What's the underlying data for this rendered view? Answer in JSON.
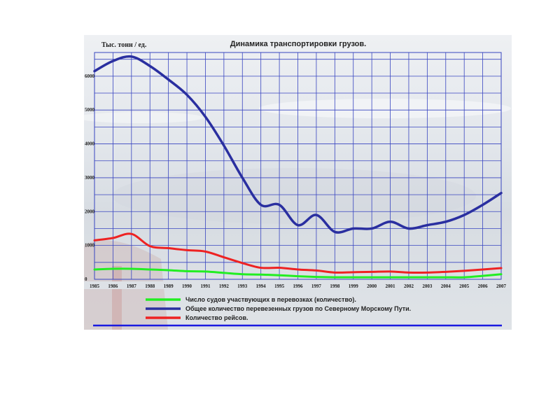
{
  "chart_data": {
    "type": "line",
    "title": "Динамика транспортировки грузов.",
    "ylabel": "Тыс. тонн / ед.",
    "xlabel": "",
    "categories": [
      "1985",
      "1986",
      "1987",
      "1988",
      "1989",
      "1990",
      "1991",
      "1992",
      "1993",
      "1994",
      "1995",
      "1996",
      "1997",
      "1998",
      "1999",
      "2000",
      "2001",
      "2002",
      "2003",
      "2004",
      "2005",
      "2006",
      "2007"
    ],
    "yticks": [
      "0",
      "1000",
      "2000",
      "3000",
      "4000",
      "5000",
      "6000"
    ],
    "ylim": [
      0,
      6700
    ],
    "grid": true,
    "legend_position": "bottom",
    "series": [
      {
        "name": "Общее количество перевезенных грузов по  Северному Морскому Пути.",
        "color": "#2a2fa0",
        "values": [
          6150,
          6450,
          6580,
          6300,
          5900,
          5450,
          4800,
          3950,
          3000,
          2200,
          2200,
          1600,
          1900,
          1400,
          1500,
          1500,
          1700,
          1500,
          1600,
          1700,
          1900,
          2200,
          2550
        ]
      },
      {
        "name": "Количество рейсов.",
        "color": "#ee2222",
        "values": [
          1150,
          1220,
          1340,
          980,
          920,
          860,
          820,
          650,
          480,
          340,
          340,
          290,
          260,
          200,
          210,
          220,
          230,
          200,
          200,
          220,
          250,
          290,
          330
        ]
      },
      {
        "name": "Число судов участвующих в перевозках (количество).",
        "color": "#22ee22",
        "values": [
          290,
          310,
          310,
          290,
          270,
          240,
          230,
          190,
          150,
          140,
          120,
          90,
          70,
          60,
          60,
          60,
          60,
          60,
          60,
          60,
          60,
          100,
          150
        ]
      }
    ]
  }
}
